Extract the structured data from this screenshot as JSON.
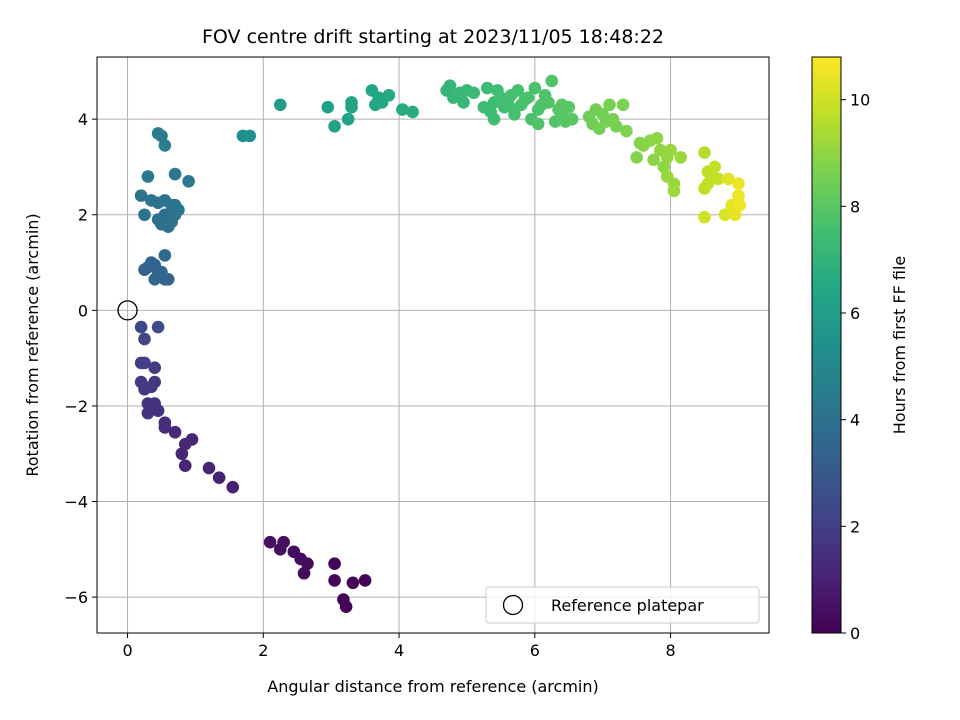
{
  "chart_data": {
    "type": "scatter",
    "title": "FOV centre drift starting at 2023/11/05 18:48:22",
    "xlabel": "Angular distance from reference (arcmin)",
    "ylabel": "Rotation from reference (arcmin)",
    "xlim": [
      -0.45,
      9.45
    ],
    "ylim": [
      -6.75,
      5.3
    ],
    "xticks": [
      0,
      2,
      4,
      6,
      8
    ],
    "yticks": [
      -6,
      -4,
      -2,
      0,
      2,
      4
    ],
    "grid": true,
    "legend": {
      "placement": "lower-right",
      "entries": [
        "Reference platepar"
      ]
    },
    "reference_point": {
      "x": 0,
      "y": 0
    },
    "colorbar": {
      "label": "Hours from first FF file",
      "colormap": "viridis",
      "range": [
        0,
        10.8
      ],
      "ticks": [
        0,
        2,
        4,
        6,
        8,
        10
      ]
    },
    "series": [
      {
        "points": [
          [
            2.1,
            -4.85,
            0.45
          ],
          [
            2.25,
            -5.0,
            0.4
          ],
          [
            2.3,
            -4.85,
            0.42
          ],
          [
            2.45,
            -5.05,
            0.38
          ],
          [
            2.55,
            -5.2,
            0.35
          ],
          [
            2.6,
            -5.5,
            0.33
          ],
          [
            2.65,
            -5.3,
            0.3
          ],
          [
            3.05,
            -5.3,
            0.2
          ],
          [
            3.05,
            -5.65,
            0.15
          ],
          [
            3.18,
            -6.05,
            0.1
          ],
          [
            3.22,
            -6.2,
            0.05
          ],
          [
            3.32,
            -5.7,
            0.12
          ],
          [
            3.5,
            -5.65,
            0.08
          ],
          [
            1.55,
            -3.7,
            1.0
          ],
          [
            1.35,
            -3.5,
            1.05
          ],
          [
            1.2,
            -3.3,
            1.1
          ],
          [
            0.95,
            -2.7,
            1.2
          ],
          [
            0.85,
            -2.8,
            1.2
          ],
          [
            0.85,
            -3.25,
            1.15
          ],
          [
            0.8,
            -3.0,
            1.15
          ],
          [
            0.7,
            -2.55,
            1.3
          ],
          [
            0.55,
            -2.45,
            1.35
          ],
          [
            0.55,
            -2.35,
            1.4
          ],
          [
            0.45,
            -2.1,
            1.5
          ],
          [
            0.4,
            -1.95,
            1.55
          ],
          [
            0.3,
            -2.15,
            1.6
          ],
          [
            0.3,
            -1.95,
            1.6
          ],
          [
            0.4,
            -1.5,
            1.7
          ],
          [
            0.35,
            -1.6,
            1.7
          ],
          [
            0.25,
            -1.65,
            1.75
          ],
          [
            0.2,
            -1.5,
            1.8
          ],
          [
            0.4,
            -1.2,
            1.9
          ],
          [
            0.2,
            -1.1,
            2.0
          ],
          [
            0.25,
            -1.1,
            2.0
          ],
          [
            0.25,
            -0.6,
            2.3
          ],
          [
            0.2,
            -0.35,
            2.4
          ],
          [
            0.45,
            -0.35,
            2.5
          ],
          [
            0.25,
            0.85,
            3.4
          ],
          [
            0.3,
            0.9,
            3.4
          ],
          [
            0.35,
            1.0,
            3.45
          ],
          [
            0.4,
            0.95,
            3.5
          ],
          [
            0.45,
            0.75,
            3.5
          ],
          [
            0.5,
            0.8,
            3.55
          ],
          [
            0.55,
            0.65,
            3.55
          ],
          [
            0.6,
            0.65,
            3.6
          ],
          [
            0.4,
            0.65,
            3.6
          ],
          [
            0.55,
            1.15,
            3.7
          ],
          [
            0.45,
            1.9,
            3.9
          ],
          [
            0.5,
            1.8,
            3.95
          ],
          [
            0.55,
            2.0,
            3.95
          ],
          [
            0.6,
            1.75,
            4.0
          ],
          [
            0.65,
            1.85,
            4.0
          ],
          [
            0.7,
            2.0,
            4.05
          ],
          [
            0.65,
            2.2,
            4.05
          ],
          [
            0.55,
            2.3,
            4.1
          ],
          [
            0.45,
            2.25,
            4.1
          ],
          [
            0.35,
            2.3,
            4.1
          ],
          [
            0.25,
            2.0,
            4.15
          ],
          [
            0.2,
            2.4,
            4.15
          ],
          [
            0.7,
            2.2,
            4.2
          ],
          [
            0.75,
            2.1,
            4.2
          ],
          [
            0.3,
            2.8,
            4.3
          ],
          [
            0.7,
            2.85,
            4.3
          ],
          [
            0.9,
            2.7,
            4.35
          ],
          [
            0.45,
            3.7,
            4.5
          ],
          [
            0.5,
            3.65,
            4.5
          ],
          [
            0.55,
            3.45,
            4.55
          ],
          [
            1.7,
            3.65,
            5.3
          ],
          [
            1.8,
            3.65,
            5.35
          ],
          [
            2.25,
            4.3,
            5.9
          ],
          [
            2.95,
            4.25,
            6.1
          ],
          [
            3.05,
            3.85,
            6.15
          ],
          [
            3.25,
            4.0,
            6.2
          ],
          [
            3.3,
            4.25,
            6.25
          ],
          [
            3.3,
            4.35,
            6.25
          ],
          [
            3.6,
            4.6,
            6.35
          ],
          [
            3.65,
            4.3,
            6.4
          ],
          [
            3.7,
            4.45,
            6.45
          ],
          [
            3.75,
            4.35,
            6.5
          ],
          [
            3.85,
            4.5,
            6.55
          ],
          [
            4.05,
            4.2,
            6.65
          ],
          [
            4.2,
            4.15,
            6.7
          ],
          [
            4.7,
            4.6,
            7.1
          ],
          [
            4.75,
            4.7,
            7.1
          ],
          [
            4.8,
            4.45,
            7.15
          ],
          [
            4.85,
            4.5,
            7.15
          ],
          [
            4.9,
            4.55,
            7.2
          ],
          [
            4.95,
            4.35,
            7.2
          ],
          [
            5.0,
            4.6,
            7.25
          ],
          [
            5.1,
            4.55,
            7.3
          ],
          [
            5.25,
            4.25,
            7.35
          ],
          [
            5.3,
            4.65,
            7.35
          ],
          [
            5.35,
            4.15,
            7.4
          ],
          [
            5.4,
            4.35,
            7.4
          ],
          [
            5.4,
            4.0,
            7.45
          ],
          [
            5.45,
            4.6,
            7.45
          ],
          [
            5.55,
            4.25,
            7.5
          ],
          [
            5.6,
            4.35,
            7.5
          ],
          [
            5.65,
            4.5,
            7.55
          ],
          [
            5.7,
            4.2,
            7.55
          ],
          [
            5.75,
            4.6,
            7.6
          ],
          [
            5.8,
            4.3,
            7.6
          ],
          [
            5.85,
            4.4,
            7.65
          ],
          [
            5.9,
            4.45,
            7.65
          ],
          [
            5.95,
            4.0,
            7.7
          ],
          [
            6.0,
            4.65,
            7.7
          ],
          [
            6.05,
            4.2,
            7.75
          ],
          [
            6.1,
            4.3,
            7.75
          ],
          [
            6.15,
            4.5,
            7.8
          ],
          [
            6.2,
            4.35,
            7.8
          ],
          [
            6.25,
            4.8,
            7.85
          ],
          [
            6.3,
            3.95,
            7.85
          ],
          [
            6.35,
            4.2,
            7.9
          ],
          [
            6.4,
            4.1,
            7.9
          ],
          [
            6.45,
            3.95,
            7.95
          ],
          [
            6.5,
            4.25,
            7.95
          ],
          [
            6.55,
            4.0,
            8.0
          ],
          [
            6.05,
            3.9,
            7.8
          ],
          [
            5.7,
            4.1,
            7.6
          ],
          [
            5.5,
            4.45,
            7.5
          ],
          [
            6.4,
            4.3,
            7.95
          ],
          [
            6.8,
            4.05,
            8.4
          ],
          [
            6.85,
            3.9,
            8.45
          ],
          [
            6.9,
            4.2,
            8.45
          ],
          [
            6.95,
            3.8,
            8.5
          ],
          [
            7.0,
            4.1,
            8.5
          ],
          [
            7.05,
            3.95,
            8.55
          ],
          [
            7.1,
            4.3,
            8.55
          ],
          [
            7.15,
            4.0,
            8.6
          ],
          [
            7.2,
            3.85,
            8.6
          ],
          [
            7.3,
            4.3,
            8.65
          ],
          [
            7.35,
            3.75,
            8.7
          ],
          [
            7.5,
            3.2,
            8.8
          ],
          [
            7.55,
            3.5,
            8.8
          ],
          [
            7.6,
            3.45,
            8.85
          ],
          [
            7.7,
            3.55,
            8.9
          ],
          [
            7.75,
            3.15,
            8.95
          ],
          [
            7.8,
            3.6,
            8.95
          ],
          [
            7.85,
            3.35,
            9.0
          ],
          [
            7.9,
            3.0,
            9.0
          ],
          [
            7.95,
            3.2,
            9.05
          ],
          [
            8.0,
            3.35,
            9.1
          ],
          [
            8.05,
            2.65,
            9.15
          ],
          [
            8.15,
            3.2,
            9.2
          ],
          [
            7.95,
            2.8,
            9.1
          ],
          [
            8.05,
            2.5,
            9.2
          ],
          [
            8.5,
            3.3,
            9.6
          ],
          [
            8.55,
            2.9,
            9.7
          ],
          [
            8.6,
            2.8,
            9.75
          ],
          [
            8.65,
            3.0,
            9.8
          ],
          [
            8.7,
            2.75,
            9.85
          ],
          [
            8.5,
            2.55,
            9.75
          ],
          [
            8.55,
            2.65,
            9.8
          ],
          [
            8.8,
            2.0,
            10.2
          ],
          [
            8.85,
            2.75,
            10.3
          ],
          [
            8.9,
            2.2,
            10.4
          ],
          [
            8.95,
            2.0,
            10.45
          ],
          [
            9.0,
            2.65,
            10.5
          ],
          [
            9.0,
            2.4,
            10.55
          ],
          [
            9.02,
            2.2,
            10.6
          ],
          [
            8.5,
            1.95,
            10.0
          ]
        ]
      }
    ]
  }
}
